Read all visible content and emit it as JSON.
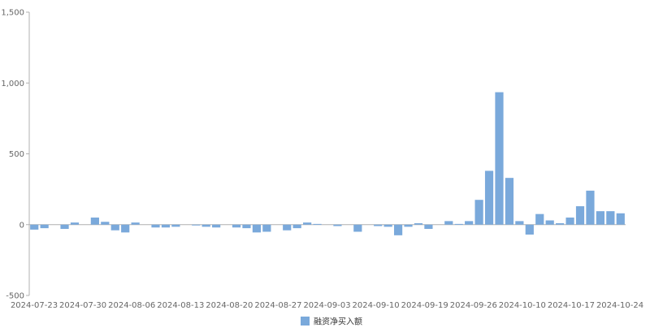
{
  "chart_data": {
    "type": "bar",
    "title": "",
    "xlabel": "",
    "ylabel": "",
    "ylim": [
      -500,
      1500
    ],
    "y_ticks": [
      "1,500",
      "1,000",
      "500",
      "0",
      "-500"
    ],
    "x_tick_labels": [
      "2024-07-23",
      "2024-07-30",
      "2024-08-06",
      "2024-08-13",
      "2024-08-20",
      "2024-08-27",
      "2024-09-03",
      "2024-09-10",
      "2024-09-19",
      "2024-09-26",
      "2024-10-10",
      "2024-10-17",
      "2024-10-24"
    ],
    "grid": false,
    "legend_position": "bottom-center",
    "series": [
      {
        "name": "融资净买入额",
        "color": "#7aa9db",
        "values": [
          -35,
          -25,
          0,
          -30,
          15,
          0,
          50,
          20,
          -40,
          -55,
          15,
          0,
          -20,
          -20,
          -15,
          0,
          -5,
          -15,
          -20,
          0,
          -20,
          -25,
          -55,
          -50,
          0,
          -40,
          -25,
          15,
          5,
          0,
          -10,
          0,
          -50,
          0,
          -10,
          -15,
          -75,
          -15,
          10,
          -30,
          0,
          25,
          5,
          25,
          175,
          380,
          935,
          330,
          25,
          -70,
          75,
          30,
          10,
          50,
          130,
          240,
          95,
          95,
          80
        ]
      }
    ]
  }
}
